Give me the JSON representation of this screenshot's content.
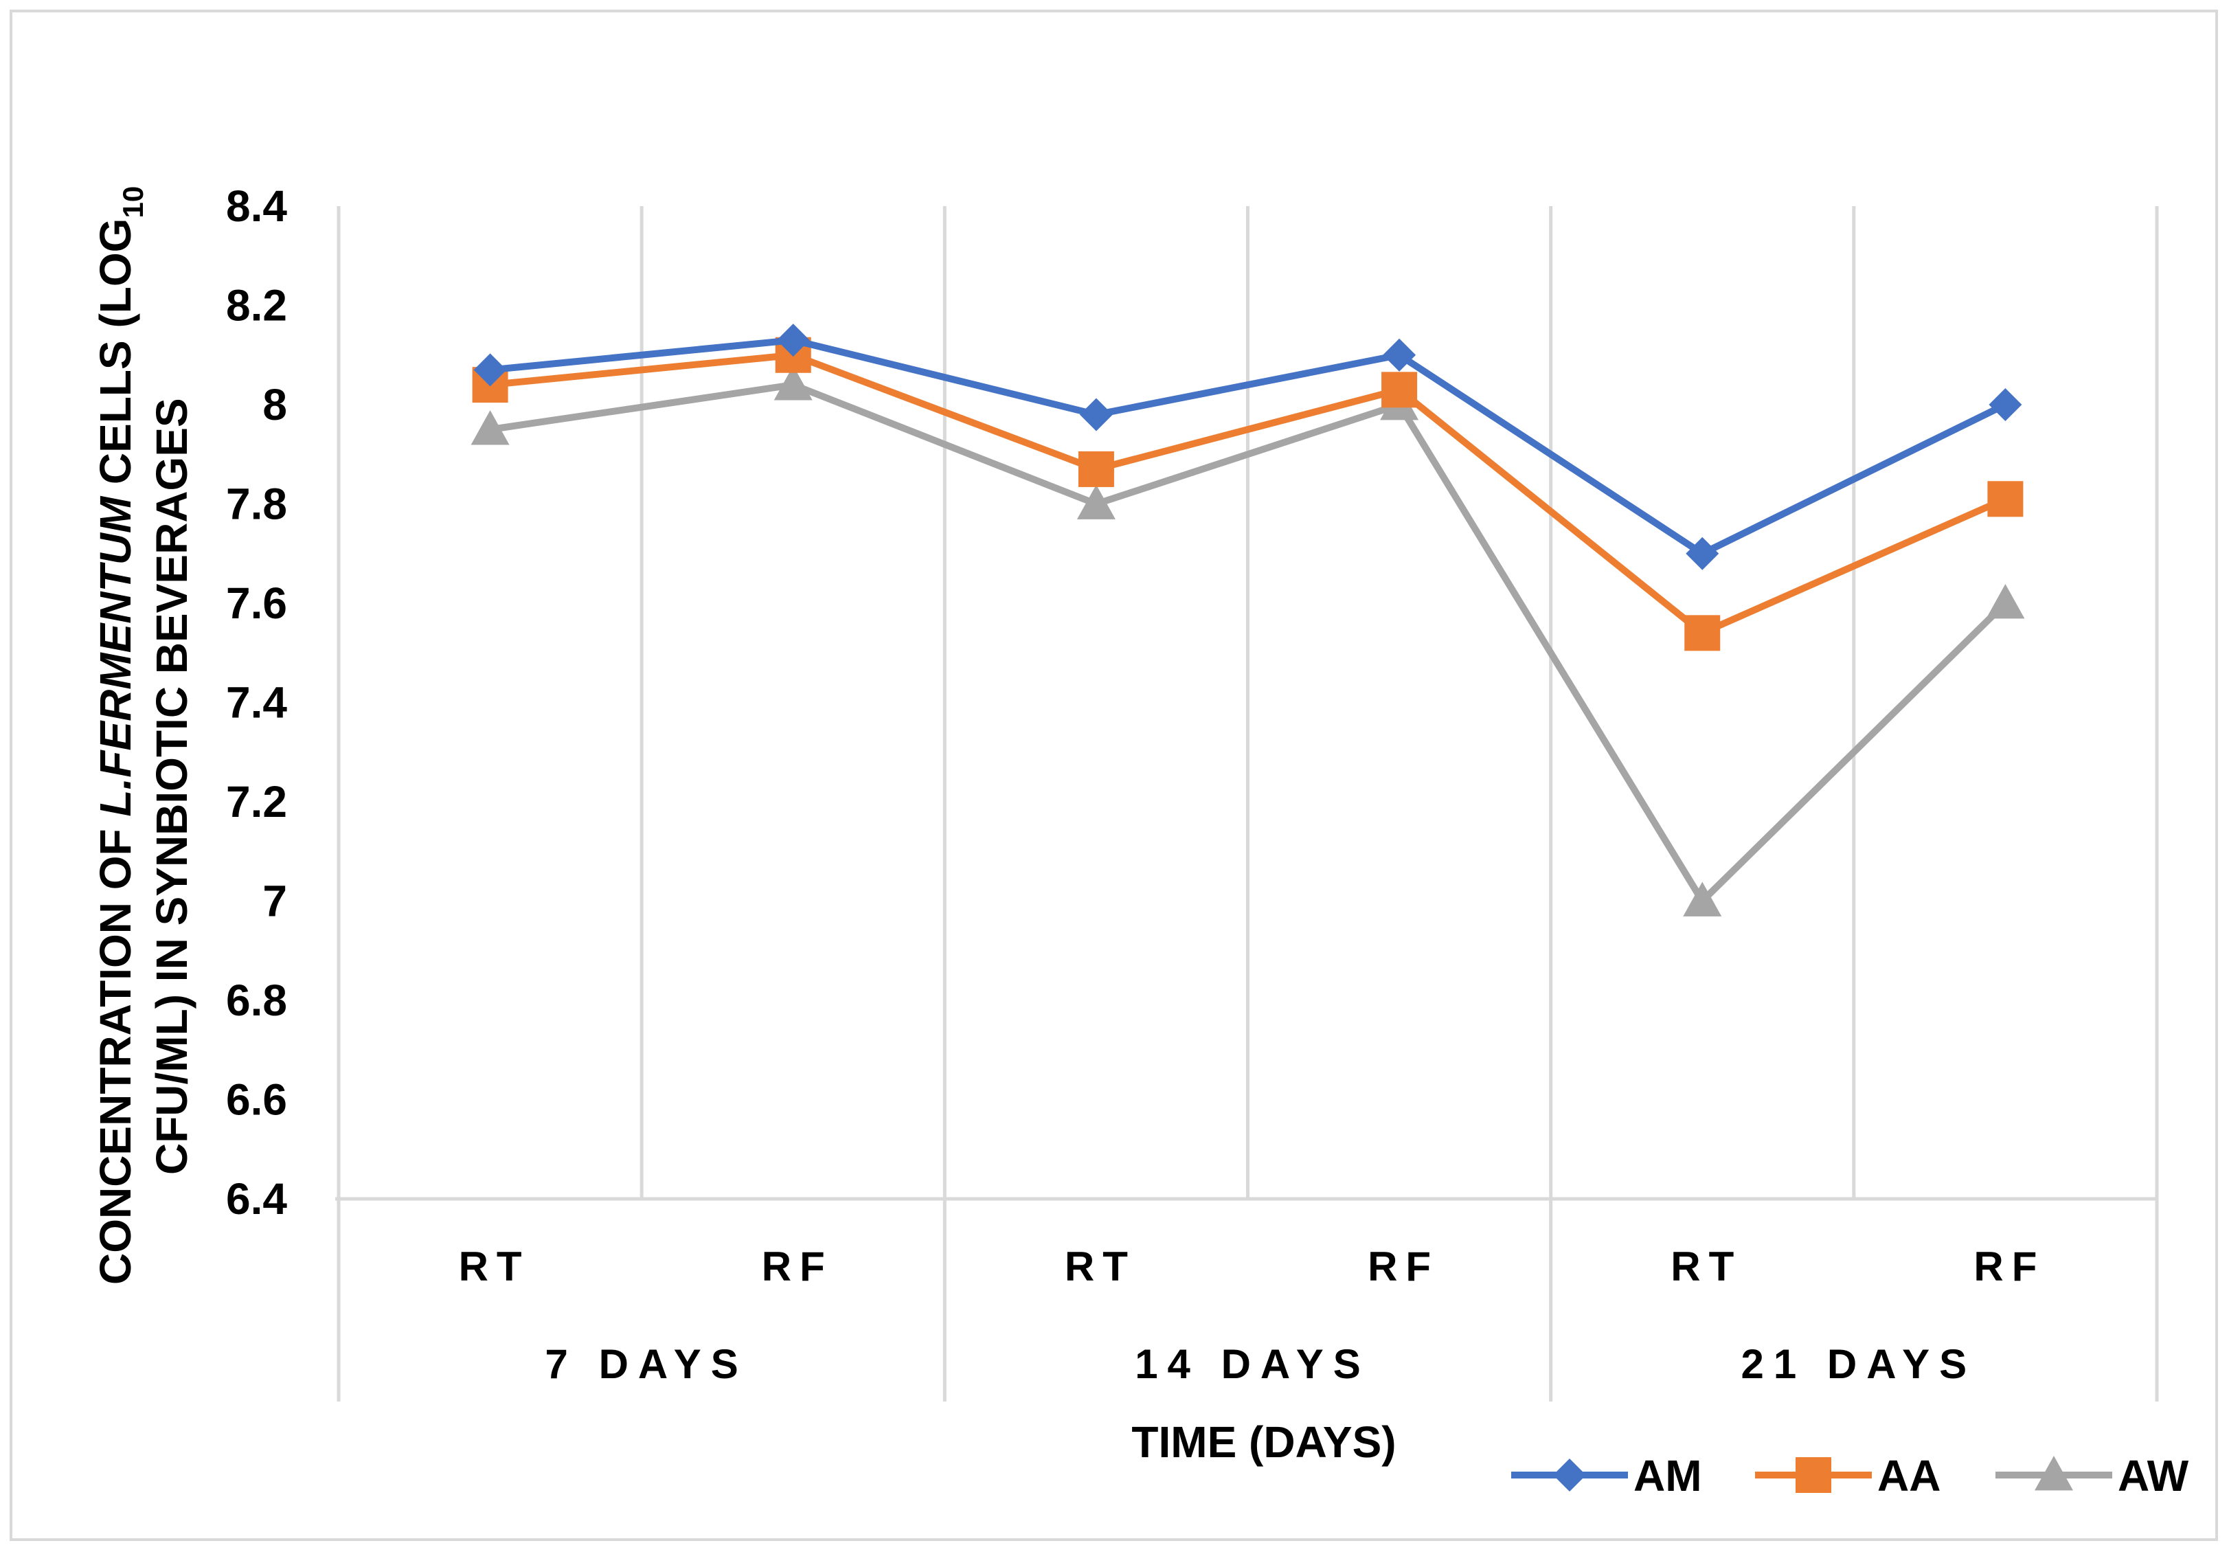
{
  "chart_data": {
    "type": "line",
    "title": "",
    "ylabel_line1_prefix": "CONCENTRATION OF ",
    "ylabel_line1_italic": "L.FERMENTUM",
    "ylabel_line1_suffix": " CELLS (LOG",
    "ylabel_line1_sub": "10",
    "ylabel_line2": "CFU/ML) IN SYNBIOTIC BEVERAGES",
    "xlabel": "TIME (DAYS)",
    "ylim": [
      6.4,
      8.4
    ],
    "ytick_step": 0.2,
    "yticks": [
      "6.4",
      "6.6",
      "6.8",
      "7",
      "7.2",
      "7.4",
      "7.6",
      "7.8",
      "8",
      "8.2",
      "8.4"
    ],
    "categories": [
      "RT",
      "RF",
      "RT",
      "RF",
      "RT",
      "RF"
    ],
    "groups": [
      "7 DAYS",
      "14 DAYS",
      "21 DAYS"
    ],
    "grid": true,
    "legend_position": "bottom-right",
    "series": [
      {
        "name": "AM",
        "color": "#4472c4",
        "marker": "diamond",
        "values": [
          8.07,
          8.13,
          7.98,
          8.1,
          7.7,
          8.0
        ]
      },
      {
        "name": "AA",
        "color": "#ed7d31",
        "marker": "square",
        "values": [
          8.04,
          8.1,
          7.87,
          8.03,
          7.54,
          7.81
        ]
      },
      {
        "name": "AW",
        "color": "#a5a5a5",
        "marker": "triangle",
        "values": [
          7.95,
          8.04,
          7.8,
          8.0,
          7.0,
          7.6
        ]
      }
    ]
  }
}
